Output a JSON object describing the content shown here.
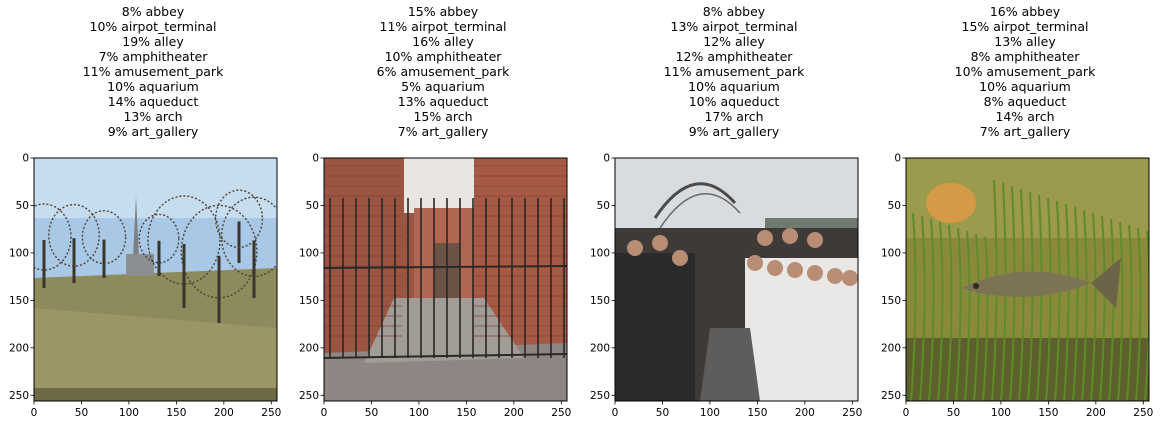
{
  "chart_data": [
    {
      "type": "image",
      "title_lines": [
        "8% abbey",
        "10% airpot_terminal",
        "19% alley",
        "7% amphitheater",
        "11% amusement_park",
        "10% aquarium",
        "14% aqueduct",
        "13% arch",
        "9% art_gallery"
      ],
      "xticks": [
        "0",
        "50",
        "100",
        "150",
        "200",
        "250"
      ],
      "yticks": [
        "0",
        "50",
        "100",
        "150",
        "200",
        "250"
      ],
      "xlim": [
        0,
        256
      ],
      "ylim": [
        256,
        0
      ],
      "image_description": "park-church"
    },
    {
      "type": "image",
      "title_lines": [
        "15% abbey",
        "11% airpot_terminal",
        "16% alley",
        "10% amphitheater",
        "6% amusement_park",
        "5% aquarium",
        "13% aqueduct",
        "15% arch",
        "7% art_gallery"
      ],
      "xticks": [
        "0",
        "50",
        "100",
        "150",
        "200",
        "250"
      ],
      "yticks": [
        "0",
        "50",
        "100",
        "150",
        "200",
        "250"
      ],
      "xlim": [
        0,
        256
      ],
      "ylim": [
        256,
        0
      ],
      "image_description": "brick-alley-gate"
    },
    {
      "type": "image",
      "title_lines": [
        "8% abbey",
        "13% airpot_terminal",
        "12% alley",
        "12% amphitheater",
        "11% amusement_park",
        "10% aquarium",
        "10% aqueduct",
        "17% arch",
        "9% art_gallery"
      ],
      "xticks": [
        "0",
        "50",
        "100",
        "150",
        "200",
        "250"
      ],
      "yticks": [
        "0",
        "50",
        "100",
        "150",
        "200",
        "250"
      ],
      "xlim": [
        0,
        256
      ],
      "ylim": [
        256,
        0
      ],
      "image_description": "crowd-rollercoaster"
    },
    {
      "type": "image",
      "title_lines": [
        "16% abbey",
        "15% airpot_terminal",
        "13% alley",
        "8% amphitheater",
        "10% amusement_park",
        "10% aquarium",
        "8% aqueduct",
        "14% arch",
        "7% art_gallery"
      ],
      "xticks": [
        "0",
        "50",
        "100",
        "150",
        "200",
        "250"
      ],
      "yticks": [
        "0",
        "50",
        "100",
        "150",
        "200",
        "250"
      ],
      "xlim": [
        0,
        256
      ],
      "ylim": [
        256,
        0
      ],
      "image_description": "aquarium-fish"
    }
  ]
}
